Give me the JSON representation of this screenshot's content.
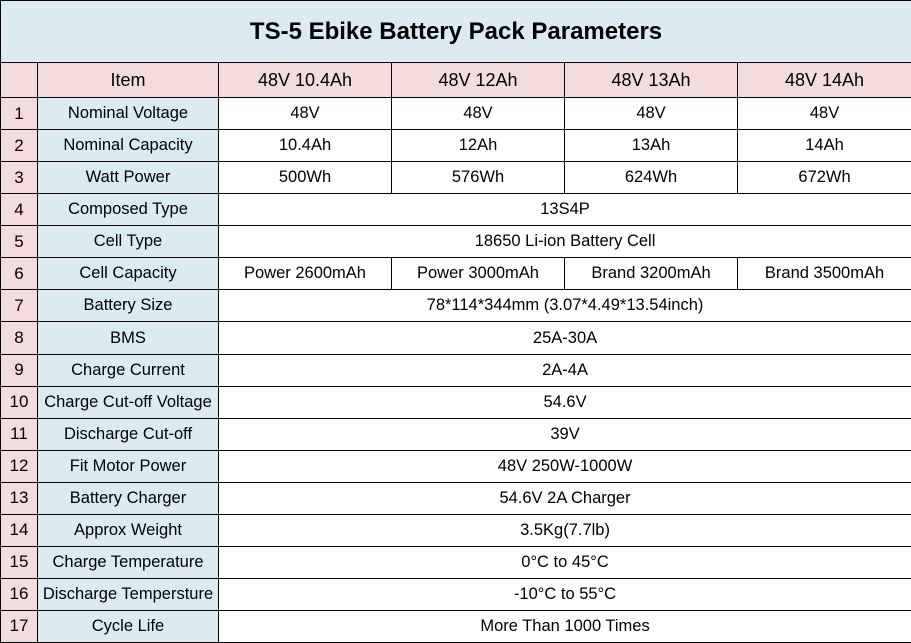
{
  "title": "TS-5 Ebike Battery Pack Parameters",
  "header": [
    "Item",
    "48V 10.4Ah",
    "48V 12Ah",
    "48V 13Ah",
    "48V 14Ah"
  ],
  "rows": [
    {
      "idx": "1",
      "label": "Nominal Voltage",
      "values": [
        "48V",
        "48V",
        "48V",
        "48V"
      ]
    },
    {
      "idx": "2",
      "label": "Nominal Capacity",
      "values": [
        "10.4Ah",
        "12Ah",
        "13Ah",
        "14Ah"
      ]
    },
    {
      "idx": "3",
      "label": "Watt Power",
      "values": [
        "500Wh",
        "576Wh",
        "624Wh",
        "672Wh"
      ]
    },
    {
      "idx": "4",
      "label": "Composed Type",
      "values": [
        "13S4P"
      ]
    },
    {
      "idx": "5",
      "label": "Cell Type",
      "values": [
        "18650 Li-ion Battery Cell"
      ]
    },
    {
      "idx": "6",
      "label": "Cell Capacity",
      "values": [
        "Power 2600mAh",
        "Power 3000mAh",
        "Brand 3200mAh",
        "Brand 3500mAh"
      ]
    },
    {
      "idx": "7",
      "label": "Battery Size",
      "values": [
        "78*114*344mm (3.07*4.49*13.54inch)"
      ]
    },
    {
      "idx": "8",
      "label": "BMS",
      "values": [
        "25A-30A"
      ]
    },
    {
      "idx": "9",
      "label": "Charge Current",
      "values": [
        "2A-4A"
      ]
    },
    {
      "idx": "10",
      "label": "Charge Cut-off Voltage",
      "values": [
        "54.6V"
      ]
    },
    {
      "idx": "11",
      "label": "Discharge Cut-off",
      "values": [
        "39V"
      ]
    },
    {
      "idx": "12",
      "label": "Fit Motor Power",
      "values": [
        "48V 250W-1000W"
      ]
    },
    {
      "idx": "13",
      "label": "Battery Charger",
      "values": [
        "54.6V 2A Charger"
      ]
    },
    {
      "idx": "14",
      "label": "Approx Weight",
      "values": [
        "3.5Kg(7.7lb)"
      ]
    },
    {
      "idx": "15",
      "label": "Charge Temperature",
      "values": [
        "0°C to 45°C"
      ]
    },
    {
      "idx": "16",
      "label": "Discharge Tempersture",
      "values": [
        "-10°C to 55°C"
      ]
    },
    {
      "idx": "17",
      "label": "Cycle Life",
      "values": [
        "More Than 1000 Times"
      ]
    }
  ]
}
